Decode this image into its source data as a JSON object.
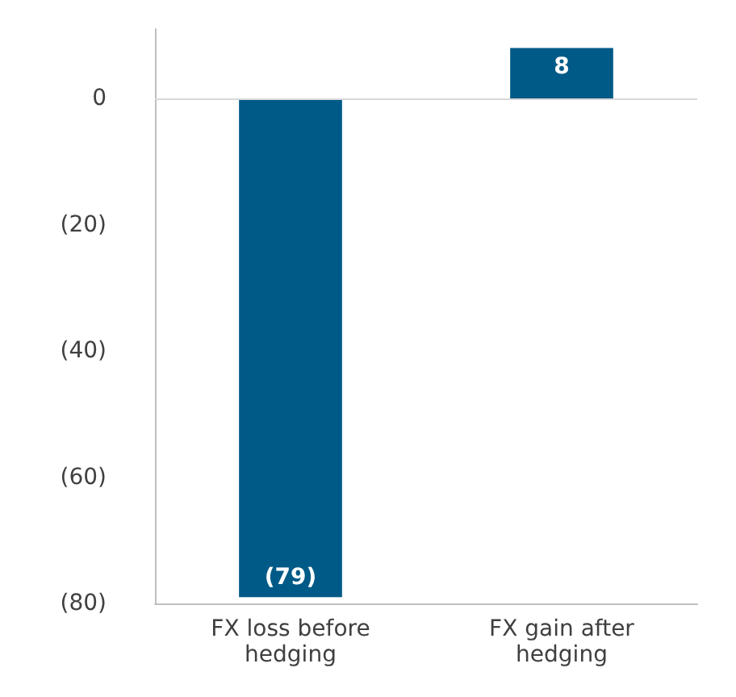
{
  "chart_data": {
    "type": "bar",
    "categories": [
      "FX loss before\nhedging",
      "FX gain after\nhedging"
    ],
    "values": [
      -79,
      8
    ],
    "color": "#005a87",
    "value_labels": [
      "(79)",
      "8"
    ],
    "ylim": [
      -80,
      11
    ],
    "yticks": [
      {
        "value": -80,
        "label": "(80)"
      },
      {
        "value": -60,
        "label": "(60)"
      },
      {
        "value": -40,
        "label": "(40)"
      },
      {
        "value": -20,
        "label": "(20)"
      },
      0
    ],
    "ref_lines": [
      {
        "axis": "y",
        "value": 0,
        "color": "#d9d9d9"
      }
    ],
    "grid": false
  }
}
